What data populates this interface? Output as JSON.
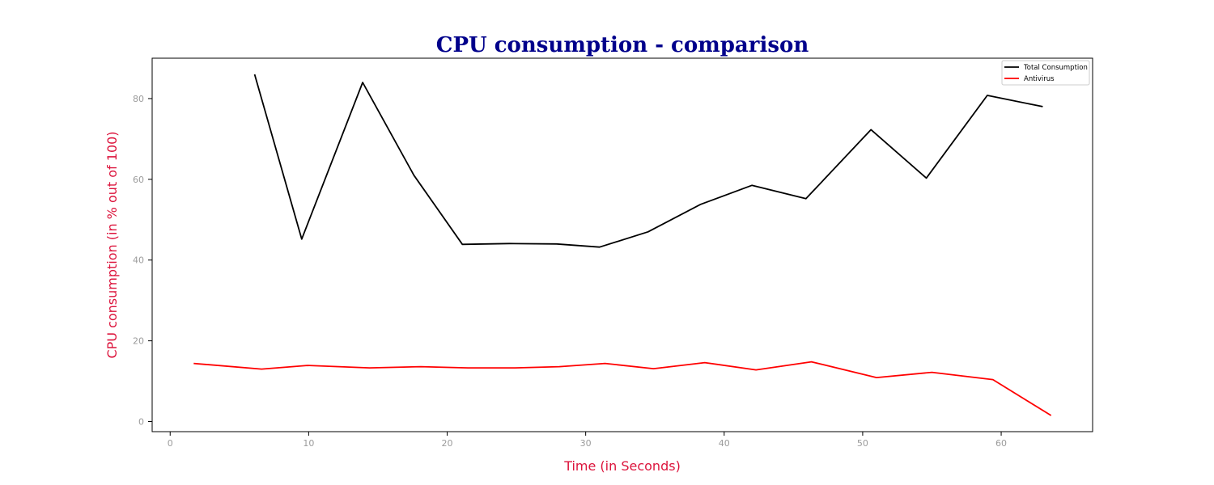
{
  "chart_data": {
    "type": "line",
    "title": "CPU consumption - comparison",
    "xlabel": "Time (in Seconds)",
    "ylabel": "CPU consumption (in % out of 100)",
    "xlim": [
      -1.3,
      66.6
    ],
    "ylim": [
      -2.5,
      90
    ],
    "xticks": [
      0,
      10,
      20,
      30,
      40,
      50,
      60
    ],
    "yticks": [
      0,
      20,
      40,
      60,
      80
    ],
    "grid": false,
    "legend_position": "top-right",
    "series": [
      {
        "name": "Total Consumption",
        "color": "#000000",
        "x": [
          6.1,
          9.5,
          13.9,
          17.6,
          21.1,
          24.5,
          27.9,
          31.0,
          34.5,
          38.3,
          42.0,
          45.9,
          50.6,
          54.6,
          59.0,
          63.0
        ],
        "y": [
          86.0,
          45.2,
          84.0,
          61.0,
          43.9,
          44.1,
          44.0,
          43.2,
          47.0,
          53.8,
          58.5,
          55.2,
          72.3,
          60.3,
          80.8,
          78.0
        ]
      },
      {
        "name": "Antivirus",
        "color": "#ff0000",
        "x": [
          1.7,
          6.6,
          9.9,
          14.4,
          18.1,
          21.5,
          24.9,
          28.1,
          31.4,
          34.9,
          38.6,
          42.3,
          46.3,
          51.0,
          55.0,
          59.4,
          63.6
        ],
        "y": [
          14.4,
          13.0,
          13.9,
          13.3,
          13.6,
          13.3,
          13.3,
          13.6,
          14.4,
          13.1,
          14.6,
          12.8,
          14.8,
          10.9,
          12.2,
          10.4,
          1.5
        ]
      }
    ]
  }
}
